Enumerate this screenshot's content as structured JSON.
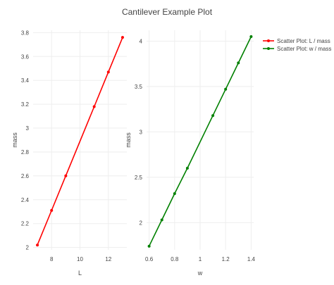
{
  "chart_data": {
    "type": "scatter",
    "title": "Cantilever Example Plot",
    "subplots": [
      {
        "xlabel": "L",
        "ylabel": "mass",
        "xlim": [
          6.7,
          13.3
        ],
        "ylim": [
          1.98,
          3.82
        ],
        "xticks": [
          8,
          10,
          12
        ],
        "yticks": [
          2,
          2.2,
          2.4,
          2.6,
          2.8,
          3,
          3.2,
          3.4,
          3.6,
          3.8
        ],
        "grid": true,
        "series": [
          {
            "name": "Scatter Plot: L / mass",
            "color": "#ff0000",
            "x": [
              7,
              8,
              9,
              11,
              12,
              13
            ],
            "y": [
              2.02,
              2.31,
              2.6,
              3.18,
              3.47,
              3.76
            ]
          }
        ]
      },
      {
        "xlabel": "w",
        "ylabel": "mass",
        "xlim": [
          0.58,
          1.42
        ],
        "ylim": [
          1.7,
          4.12
        ],
        "xticks": [
          0.6,
          0.8,
          1,
          1.2,
          1.4
        ],
        "yticks": [
          2,
          2.5,
          3,
          3.5,
          4
        ],
        "grid": true,
        "series": [
          {
            "name": "Scatter Plot: w / mass",
            "color": "#008000",
            "x": [
              0.6,
              0.7,
              0.8,
              0.9,
              1.1,
              1.2,
              1.3,
              1.4
            ],
            "y": [
              1.74,
              2.03,
              2.32,
              2.6,
              3.18,
              3.47,
              3.76,
              4.05
            ]
          }
        ]
      }
    ],
    "legend": {
      "placement": "top-right",
      "entries": [
        "Scatter Plot: L / mass",
        "Scatter Plot: w / mass"
      ]
    }
  }
}
